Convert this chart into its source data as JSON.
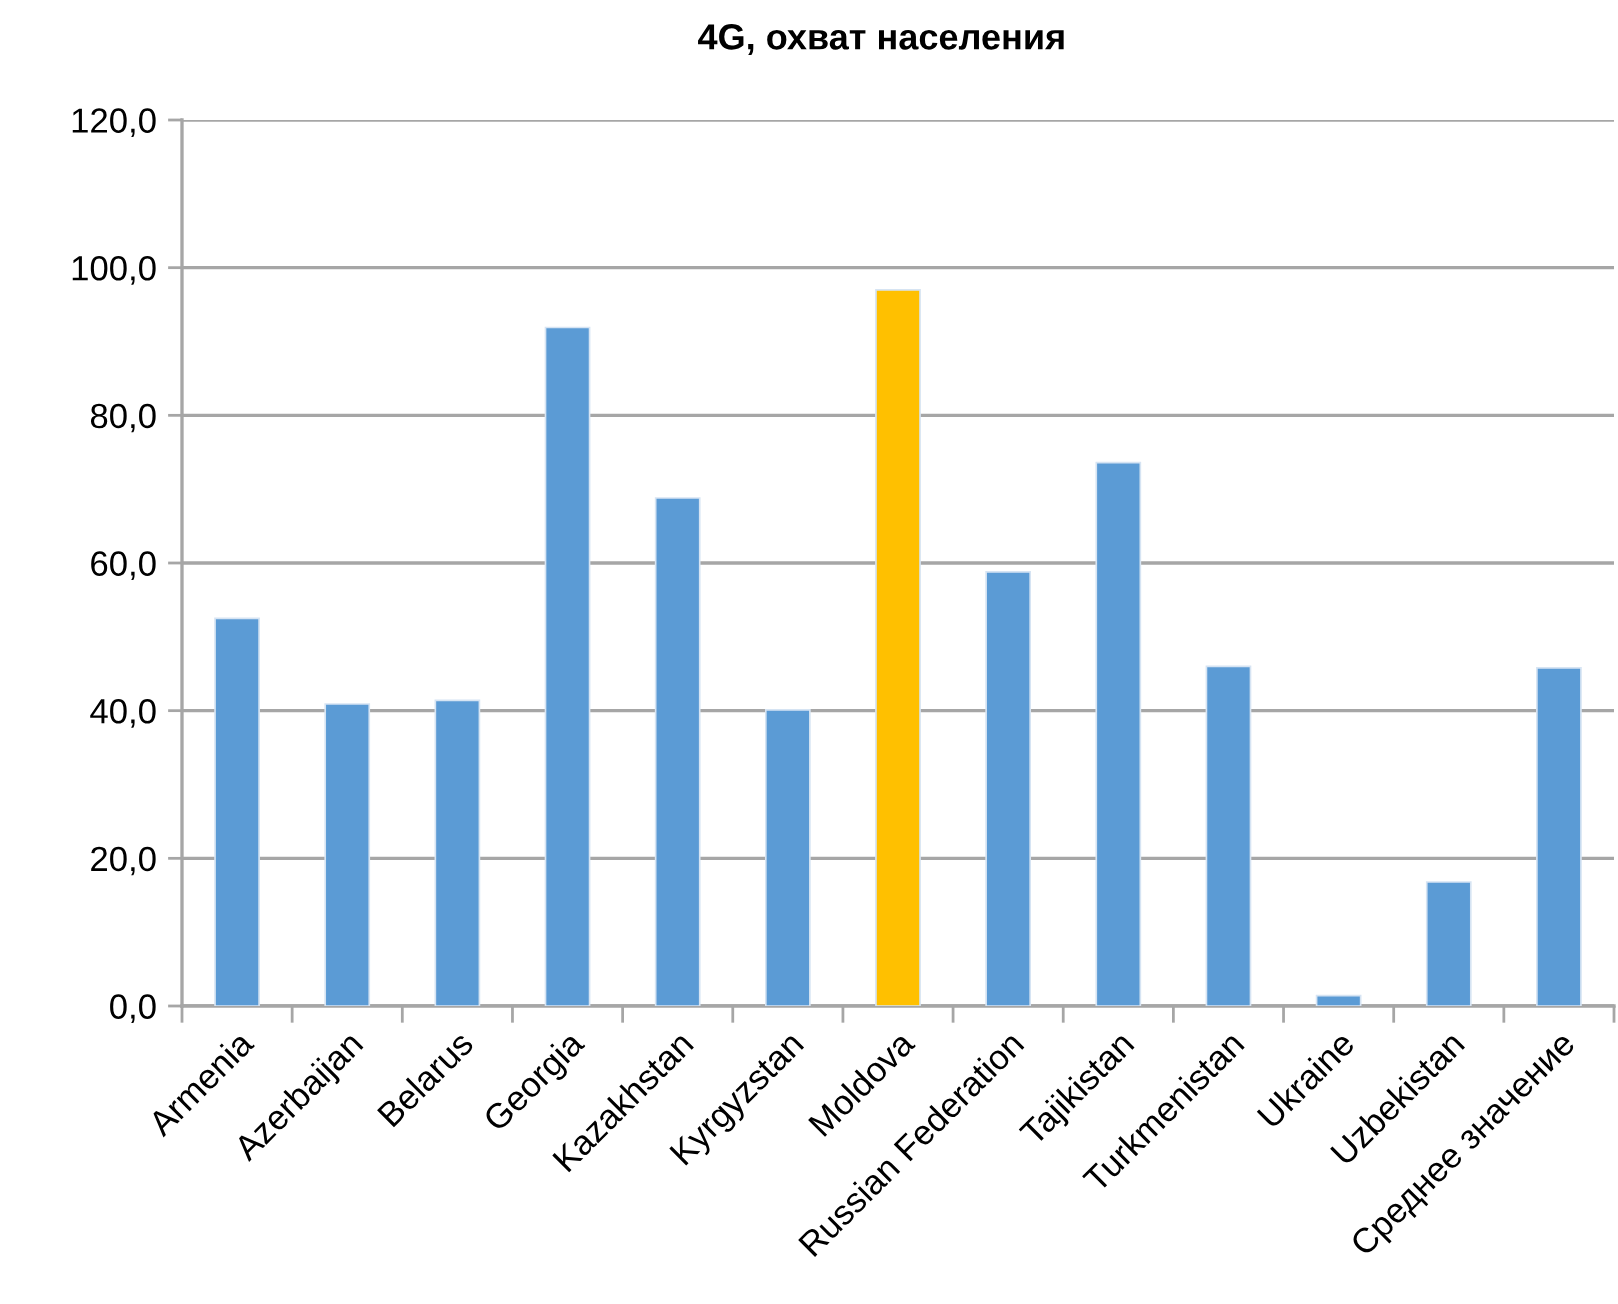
{
  "chart_data": {
    "type": "bar",
    "title": "4G, охват населения",
    "categories": [
      "Armenia",
      "Azerbaijan",
      "Belarus",
      "Georgia",
      "Kazakhstan",
      "Kyrgyzstan",
      "Moldova",
      "Russian Federation",
      "Tajikistan",
      "Turkmenistan",
      "Ukraine",
      "Uzbekistan",
      "Среднее значение"
    ],
    "values": [
      52.5,
      40.9,
      41.4,
      91.9,
      68.8,
      40.1,
      97.0,
      58.8,
      73.6,
      46.0,
      1.4,
      16.8,
      45.8
    ],
    "colors": [
      "#5b9bd5",
      "#5b9bd5",
      "#5b9bd5",
      "#5b9bd5",
      "#5b9bd5",
      "#5b9bd5",
      "#ffc000",
      "#5b9bd5",
      "#5b9bd5",
      "#5b9bd5",
      "#5b9bd5",
      "#5b9bd5",
      "#5b9bd5"
    ],
    "ylim": [
      0,
      120
    ],
    "yticks": [
      {
        "value": 0,
        "label": "0,0"
      },
      {
        "value": 20,
        "label": "20,0"
      },
      {
        "value": 40,
        "label": "40,0"
      },
      {
        "value": 60,
        "label": "60,0"
      },
      {
        "value": 80,
        "label": "80,0"
      },
      {
        "value": 100,
        "label": "100,0"
      },
      {
        "value": 120,
        "label": "120,0"
      }
    ],
    "grid": "y"
  }
}
